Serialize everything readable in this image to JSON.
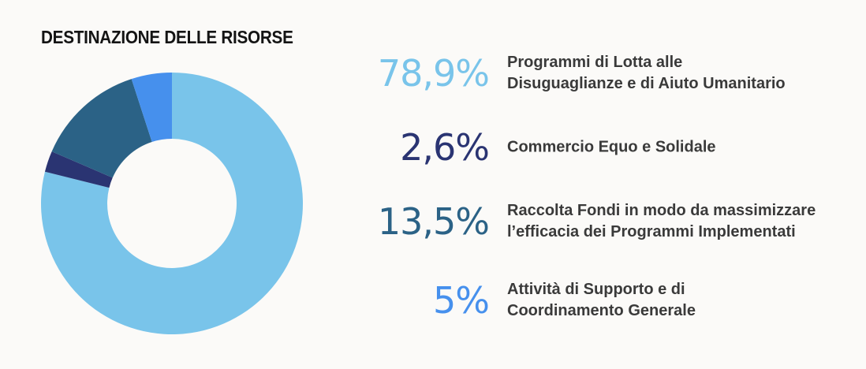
{
  "chart_data": {
    "type": "pie",
    "title": "DESTINAZIONE DELLE RISORSE",
    "slices": [
      {
        "label_lines": [
          "Programmi di Lotta alle",
          "Disuguaglianze e di Aiuto Umanitario"
        ],
        "value": 78.9,
        "value_text": "78,9%",
        "color": "#79c4ea"
      },
      {
        "label_lines": [
          "Commercio Equo e Solidale"
        ],
        "value": 2.6,
        "value_text": "2,6%",
        "color": "#2a3472"
      },
      {
        "label_lines": [
          "Raccolta Fondi in modo da massimizzare",
          "l’efficacia dei Programmi Implementati"
        ],
        "value": 13.5,
        "value_text": "13,5%",
        "color": "#2b6286"
      },
      {
        "label_lines": [
          "Attività di Supporto e di",
          "Coordinamento Generale"
        ],
        "value": 5,
        "value_text": "5%",
        "color": "#4690ed"
      }
    ]
  }
}
